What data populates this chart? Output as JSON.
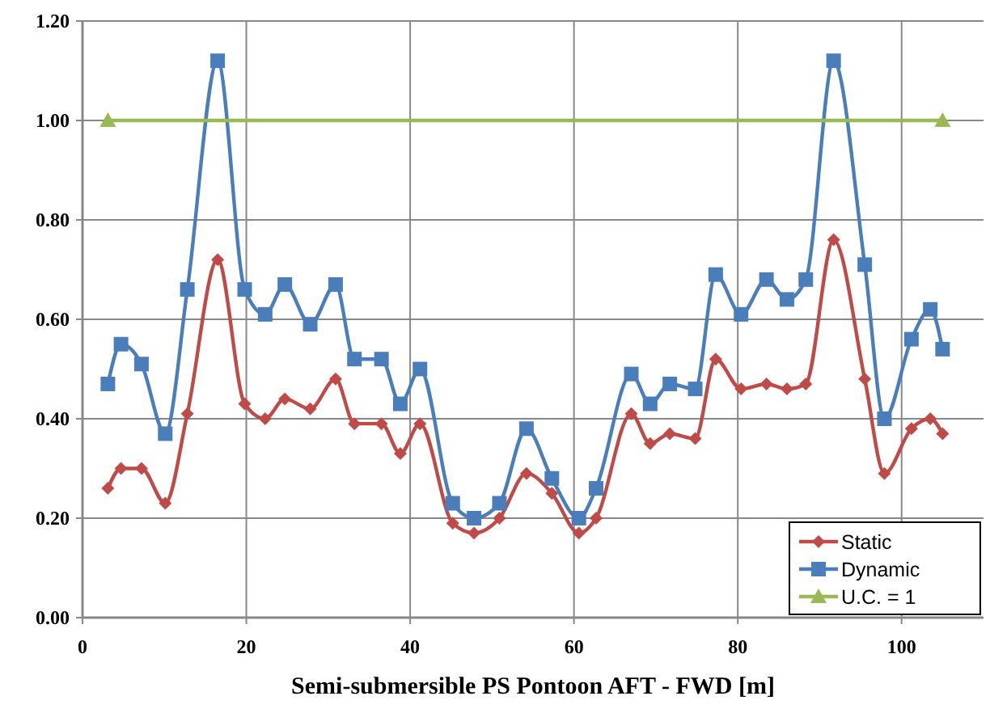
{
  "chart_data": {
    "type": "line",
    "xlabel": "Semi-submersible PS Pontoon AFT - FWD [m]",
    "x": [
      3.1,
      4.7,
      7.2,
      10.1,
      12.8,
      16.5,
      19.8,
      22.3,
      24.7,
      27.8,
      30.9,
      33.2,
      36.5,
      38.8,
      41.2,
      45.2,
      47.8,
      50.9,
      54.2,
      57.3,
      60.6,
      62.7,
      67.0,
      69.3,
      71.7,
      74.8,
      77.3,
      80.4,
      83.5,
      86.0,
      88.3,
      91.7,
      95.5,
      97.9,
      101.2,
      103.5,
      105.0
    ],
    "series": [
      {
        "name": "Static",
        "color": "#be4b48",
        "marker": "diamond",
        "values": [
          0.26,
          0.3,
          0.3,
          0.23,
          0.41,
          0.72,
          0.43,
          0.4,
          0.44,
          0.42,
          0.48,
          0.39,
          0.39,
          0.33,
          0.39,
          0.19,
          0.17,
          0.2,
          0.29,
          0.25,
          0.17,
          0.2,
          0.41,
          0.35,
          0.37,
          0.36,
          0.52,
          0.46,
          0.47,
          0.46,
          0.47,
          0.76,
          0.48,
          0.29,
          0.38,
          0.4,
          0.37
        ]
      },
      {
        "name": "Dynamic",
        "color": "#4a7ebb",
        "marker": "square",
        "values": [
          0.47,
          0.55,
          0.51,
          0.37,
          0.66,
          1.12,
          0.66,
          0.61,
          0.67,
          0.59,
          0.67,
          0.52,
          0.52,
          0.43,
          0.5,
          0.23,
          0.2,
          0.23,
          0.38,
          0.28,
          0.2,
          0.26,
          0.49,
          0.43,
          0.47,
          0.46,
          0.69,
          0.61,
          0.68,
          0.64,
          0.68,
          1.12,
          0.71,
          0.4,
          0.56,
          0.62,
          0.54
        ]
      },
      {
        "name": "U.C. = 1",
        "color": "#98b954",
        "marker": "triangle",
        "x": [
          3.1,
          105.0
        ],
        "values": [
          1,
          1
        ]
      }
    ],
    "xlim": [
      0,
      110
    ],
    "xticks": [
      0,
      20,
      40,
      60,
      80,
      100
    ],
    "ylim": [
      0,
      1.2
    ],
    "yticks": [
      {
        "value": 0,
        "label": "0.00"
      },
      {
        "value": 0.2,
        "label": "0.20"
      },
      {
        "value": 0.4,
        "label": "0.40"
      },
      {
        "value": 0.6,
        "label": "0.60"
      },
      {
        "value": 0.8,
        "label": "0.80"
      },
      {
        "value": 1,
        "label": "1.00"
      },
      {
        "value": 1.2,
        "label": "1.20"
      }
    ],
    "grid": true,
    "legend": "bottom right",
    "line_style": "solid"
  }
}
